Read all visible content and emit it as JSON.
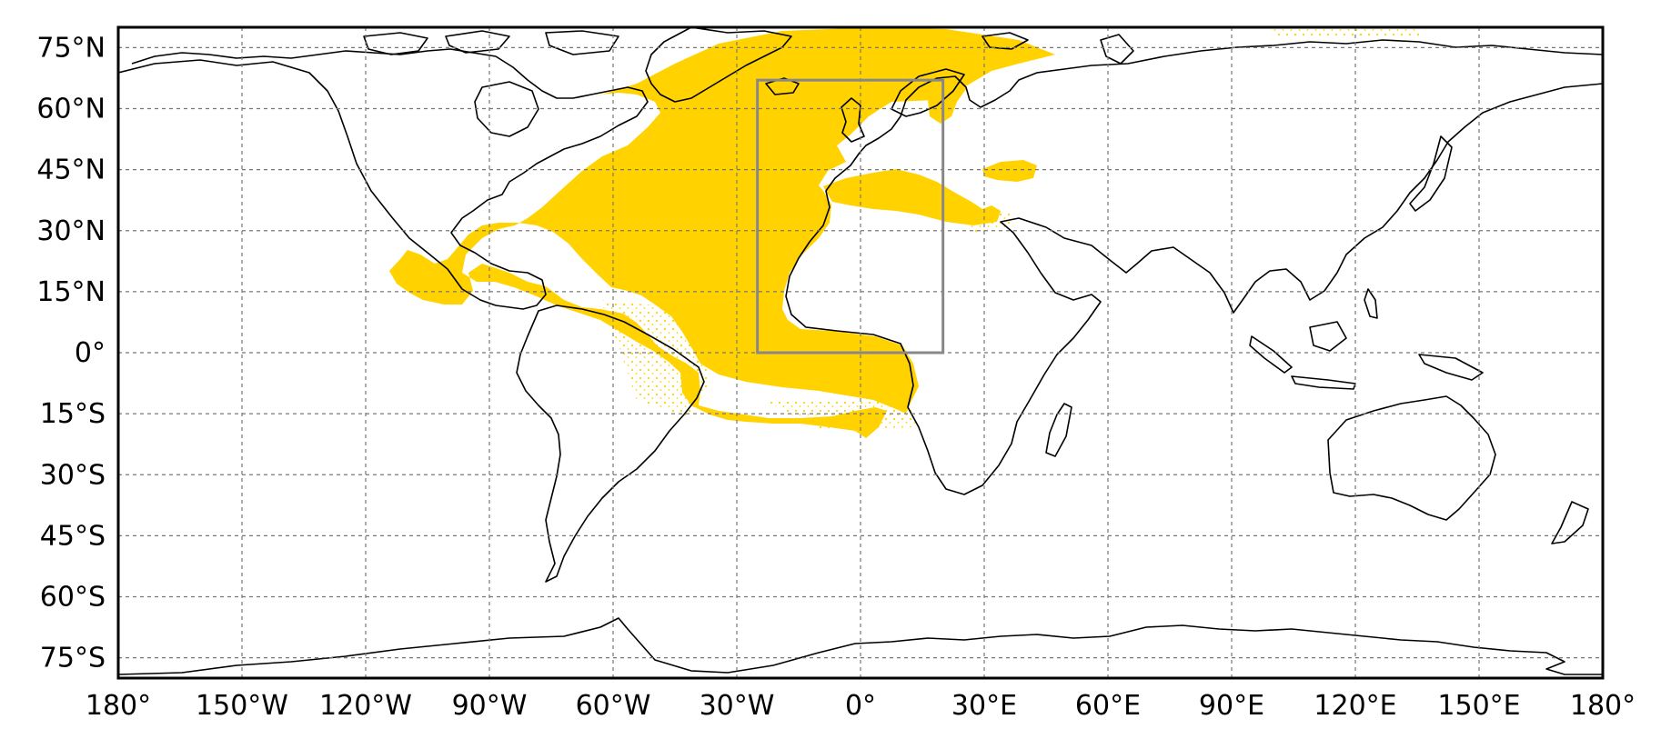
{
  "map": {
    "projection": "PlateCarree",
    "lon_range": [
      -180,
      180
    ],
    "lat_range": [
      -80,
      80
    ],
    "gridlines": true,
    "x_ticks": [
      {
        "value": -180,
        "label": "180°"
      },
      {
        "value": -150,
        "label": "150°W"
      },
      {
        "value": -120,
        "label": "120°W"
      },
      {
        "value": -90,
        "label": "90°W"
      },
      {
        "value": -60,
        "label": "60°W"
      },
      {
        "value": -30,
        "label": "30°W"
      },
      {
        "value": 0,
        "label": "0°"
      },
      {
        "value": 30,
        "label": "30°E"
      },
      {
        "value": 60,
        "label": "60°E"
      },
      {
        "value": 90,
        "label": "90°E"
      },
      {
        "value": 120,
        "label": "120°E"
      },
      {
        "value": 150,
        "label": "150°E"
      },
      {
        "value": 180,
        "label": "180°"
      }
    ],
    "y_ticks": [
      {
        "value": 75,
        "label": "75°N"
      },
      {
        "value": 60,
        "label": "60°N"
      },
      {
        "value": 45,
        "label": "45°N"
      },
      {
        "value": 30,
        "label": "30°N"
      },
      {
        "value": 15,
        "label": "15°N"
      },
      {
        "value": 0,
        "label": "0°"
      },
      {
        "value": -15,
        "label": "15°S"
      },
      {
        "value": -30,
        "label": "30°S"
      },
      {
        "value": -45,
        "label": "45°S"
      },
      {
        "value": -60,
        "label": "60°S"
      },
      {
        "value": -75,
        "label": "75°S"
      }
    ],
    "highlight_color": "#FFD200",
    "coastline_color": "#000000",
    "box_color": "#888888",
    "highlighted_area": "Atlantic Ocean (approx. 15°S–80°N) with Mediterranean, Black Sea and Baltic Sea",
    "domain_box": {
      "lon": [
        -25,
        20
      ],
      "lat": [
        0,
        67
      ]
    }
  }
}
